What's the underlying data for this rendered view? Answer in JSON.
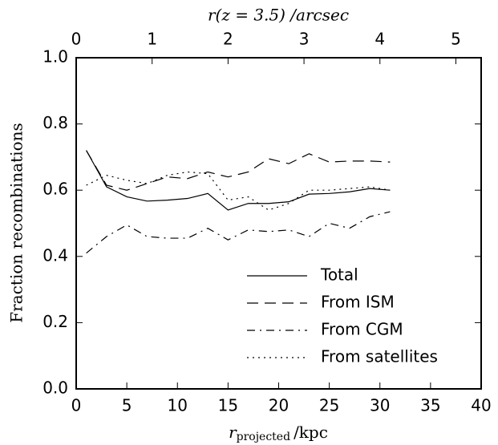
{
  "chart_data": {
    "type": "line",
    "x_label": [
      "r",
      "projected",
      "/kpc"
    ],
    "y_label": "Fraction  recombinations",
    "top_label": "r(z = 3.5) /arcsec",
    "x": [
      1,
      3,
      5,
      7,
      9,
      11,
      13,
      15,
      17,
      19,
      21,
      23,
      25,
      27,
      29,
      31
    ],
    "series": [
      {
        "name": "Total",
        "color": "#000000",
        "linestyle": "solid",
        "values": [
          0.72,
          0.61,
          0.58,
          0.567,
          0.57,
          0.575,
          0.59,
          0.54,
          0.56,
          0.56,
          0.565,
          0.588,
          0.59,
          0.595,
          0.605,
          0.6
        ]
      },
      {
        "name": "From ISM",
        "color": "#000000",
        "linestyle": "dashed",
        "values": [
          0.72,
          0.615,
          0.6,
          0.62,
          0.64,
          0.635,
          0.655,
          0.64,
          0.655,
          0.695,
          0.68,
          0.71,
          0.685,
          0.688,
          0.688,
          0.685
        ]
      },
      {
        "name": "From CGM",
        "color": "#000000",
        "linestyle": "dashdot",
        "values": [
          0.41,
          0.46,
          0.495,
          0.46,
          0.455,
          0.455,
          0.485,
          0.45,
          0.48,
          0.475,
          0.48,
          0.46,
          0.5,
          0.485,
          0.52,
          0.535
        ]
      },
      {
        "name": "From satellites",
        "color": "#000000",
        "linestyle": "dotted",
        "values": [
          0.615,
          0.645,
          0.63,
          0.62,
          0.645,
          0.655,
          0.65,
          0.57,
          0.58,
          0.54,
          0.56,
          0.6,
          0.6,
          0.605,
          0.61,
          0.6
        ]
      }
    ],
    "xlim": [
      0,
      40
    ],
    "xticks": [
      0,
      5,
      10,
      15,
      20,
      25,
      30,
      35,
      40
    ],
    "ylim": [
      0,
      1
    ],
    "yticks": [
      {
        "value": 0,
        "label": "0.0"
      },
      0.2,
      0.4,
      0.6,
      0.8,
      {
        "value": 1,
        "label": "1.0"
      }
    ],
    "x2lim": [
      0,
      5.333
    ],
    "x2ticks": [
      0,
      1,
      2,
      3,
      4,
      5
    ],
    "legend": "lower right",
    "grid": false
  }
}
